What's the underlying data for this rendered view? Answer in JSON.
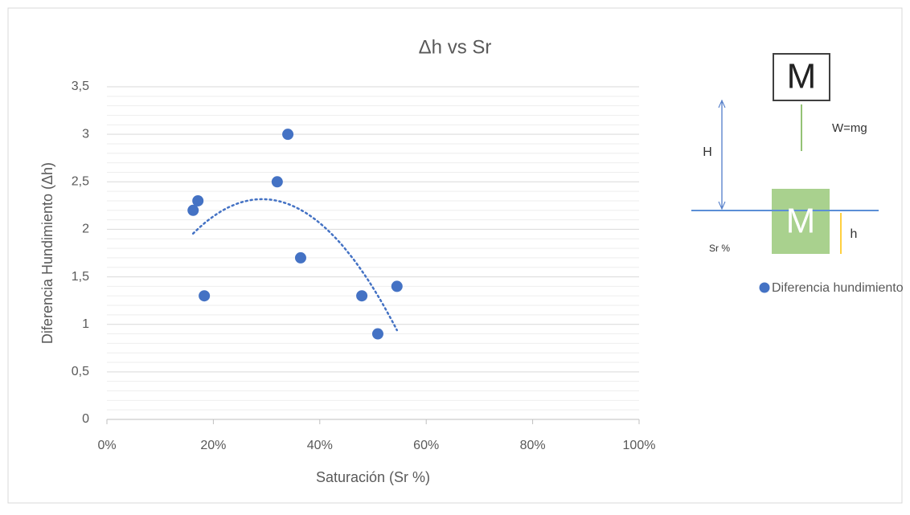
{
  "chart_data": {
    "type": "scatter",
    "title": "Δh vs Sr",
    "xlabel": "Saturación (Sr %)",
    "ylabel": "Diferencia Hundimiento (Δh)",
    "xlim": [
      0,
      100
    ],
    "ylim": [
      0,
      3.5
    ],
    "xticks": [
      {
        "value": 0,
        "label": "0%"
      },
      {
        "value": 20,
        "label": "20%"
      },
      {
        "value": 40,
        "label": "40%"
      },
      {
        "value": 60,
        "label": "60%"
      },
      {
        "value": 80,
        "label": "80%"
      },
      {
        "value": 100,
        "label": "100%"
      }
    ],
    "yticks": [
      0,
      {
        "value": 0.5,
        "label": "0,5"
      },
      1,
      {
        "value": 1.5,
        "label": "1,5"
      },
      2,
      {
        "value": 2.5,
        "label": "2,5"
      },
      3,
      {
        "value": 3.5,
        "label": "3,5"
      }
    ],
    "grid": true,
    "legend": "right",
    "trendline": {
      "type": "polynomial",
      "order": 2
    },
    "series": [
      {
        "name": "Diferencia hundimiento",
        "color": "#4472c4",
        "x": [
          16.2,
          17.1,
          18.3,
          32.0,
          34.0,
          36.4,
          47.9,
          50.9,
          54.5
        ],
        "values": [
          2.2,
          2.3,
          1.3,
          2.5,
          3.0,
          1.7,
          1.3,
          0.9,
          1.4
        ]
      }
    ]
  },
  "diagram": {
    "top_block": "M",
    "weight": "W=mg",
    "height": "H",
    "bottom_block": "M",
    "sink": "h",
    "saturation": "Sr %"
  }
}
